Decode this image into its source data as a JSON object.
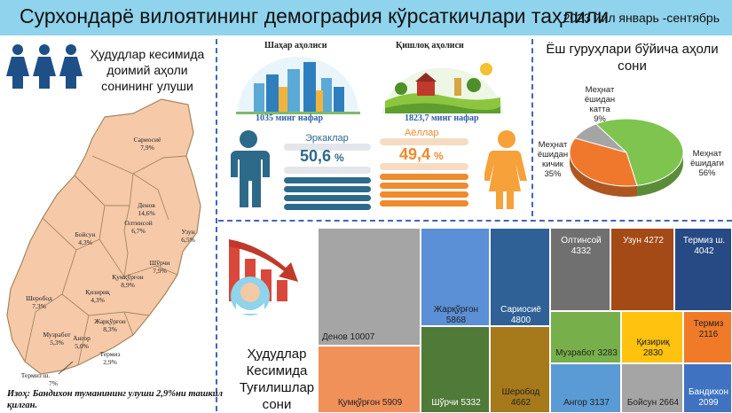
{
  "header": {
    "title": "Сурхондарё вилоятининг демография кўрсаткичлари таҳлили",
    "period": "2023 йил январь -сентябрь",
    "colors": {
      "banner": "#8fd3ec"
    }
  },
  "map_panel": {
    "title": "Ҳудудлар кесимида доимий аҳоли сонининг улуши",
    "note": "Изоҳ: Бандихон туманининг улуши 2,9%ни ташкил қилган.",
    "icon": "women-group-icon",
    "regions": [
      {
        "name": "Сариосиё",
        "share": "7,9%"
      },
      {
        "name": "Денов",
        "share": "14,6%"
      },
      {
        "name": "Олтинсой",
        "share": "6,7%"
      },
      {
        "name": "Узун",
        "share": "6,5%"
      },
      {
        "name": "Бойсун",
        "share": "4,3%"
      },
      {
        "name": "Шўрчи",
        "share": "7,9%"
      },
      {
        "name": "Қумқўрғон",
        "share": "8,9%"
      },
      {
        "name": "Шеробод",
        "share": "7,3%"
      },
      {
        "name": "Қизириқ",
        "share": "4,3%"
      },
      {
        "name": "Жарқўрғон",
        "share": "8,3%"
      },
      {
        "name": "Музработ",
        "share": "5,3%"
      },
      {
        "name": "Ангор",
        "share": "5,0%"
      },
      {
        "name": "Термиз",
        "share": "2,9%"
      },
      {
        "name": "Термиз ш.",
        "share": "7%"
      }
    ]
  },
  "population": {
    "urban": {
      "label": "Шаҳар аҳолиси",
      "value": "1035 минг нафар",
      "icon": "city-skyline-icon"
    },
    "rural": {
      "label": "Қишлоқ аҳолиси",
      "value": "1823,7 минг нафар",
      "icon": "village-farm-icon"
    },
    "men": {
      "label": "Эркаклар",
      "value": "50,6",
      "unit": "%",
      "fraction": 0.506,
      "icon": "man-icon",
      "color": "#2d6a8a"
    },
    "women": {
      "label": "Аёллар",
      "value": "49,4",
      "unit": "%",
      "fraction": 0.494,
      "icon": "woman-icon",
      "color": "#f08a2e"
    }
  },
  "age_groups": {
    "title": "Ёш гуруҳлари бўйича аҳоли сони",
    "slices": [
      {
        "label": "Меҳнат ёшидаги",
        "pct": "56%",
        "value": 56,
        "color": "#7ec44f"
      },
      {
        "label": "Меҳнат ёшидан кичик",
        "pct": "35%",
        "value": 35,
        "color": "#f0782d"
      },
      {
        "label": "Меҳнат ёшидан катта",
        "pct": "9%",
        "value": 9,
        "color": "#a5a5a5"
      }
    ]
  },
  "births": {
    "title": "Ҳудудлар Кесимида Туғилишлар сони",
    "icon": "declining-chart-icon"
  },
  "chart_data": [
    {
      "type": "pie",
      "title": "Ёш гуруҳлари бўйича аҳоли сони",
      "categories": [
        "Меҳнат ёшидаги",
        "Меҳнат ёшидан кичик",
        "Меҳнат ёшидан катта"
      ],
      "values": [
        56,
        35,
        9
      ]
    },
    {
      "type": "treemap",
      "title": "Ҳудудлар Кесимида Туғилишлар сони",
      "categories": [
        "Денов",
        "Қумқўрғон",
        "Жарқўрғон",
        "Шўрчи",
        "Сариосиё",
        "Шеробод",
        "Олтинсой",
        "Узун",
        "Термиз ш.",
        "Музработ",
        "Қизириқ",
        "Термиз",
        "Ангор",
        "Бойсун",
        "Бандихон"
      ],
      "values": [
        10007,
        5909,
        5868,
        5332,
        4800,
        4662,
        4332,
        4272,
        4042,
        3283,
        2830,
        2116,
        3137,
        2664,
        2099
      ],
      "colors": [
        "#a5a5a5",
        "#f0915a",
        "#5b8fd6",
        "#4f7a38",
        "#2f6196",
        "#a6791b",
        "#707070",
        "#a34a16",
        "#274a85",
        "#77b04a",
        "#ffc20e",
        "#f07a28",
        "#5b9bd5",
        "#a5a5a5",
        "#3f72c0"
      ]
    }
  ]
}
